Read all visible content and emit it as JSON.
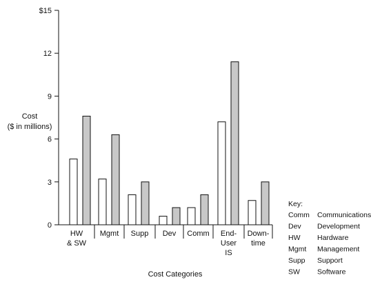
{
  "chart_data": {
    "type": "bar",
    "categories": [
      [
        "HW",
        "& SW"
      ],
      [
        "Mgmt"
      ],
      [
        "Supp"
      ],
      [
        "Dev"
      ],
      [
        "Comm"
      ],
      [
        "End-",
        "User",
        "IS"
      ],
      [
        "Down-",
        "time"
      ]
    ],
    "series": [
      {
        "values": [
          4.6,
          3.2,
          2.1,
          0.6,
          1.2,
          7.2,
          1.7
        ]
      },
      {
        "values": [
          7.6,
          6.3,
          3.0,
          1.2,
          2.1,
          11.4,
          3.0
        ]
      }
    ],
    "colors": {
      "series_0_fill": "#ffffff",
      "series_1_fill": "#c8c8c8",
      "stroke": "#111111"
    },
    "yticks": [
      "0",
      "3",
      "6",
      "9",
      "12",
      "$15"
    ],
    "ytick_values": [
      0,
      3,
      6,
      9,
      12,
      15
    ],
    "ylim": [
      0,
      15
    ],
    "ylabel": [
      "Cost",
      "($ in millions)"
    ],
    "xlabel": "Cost Categories",
    "legend_position": "bottom-right",
    "key": {
      "title": "Key:",
      "entries": [
        {
          "abbr": "Comm",
          "full": "Communications"
        },
        {
          "abbr": "Dev",
          "full": "Development"
        },
        {
          "abbr": "HW",
          "full": "Hardware"
        },
        {
          "abbr": "Mgmt",
          "full": "Management"
        },
        {
          "abbr": "Supp",
          "full": "Support"
        },
        {
          "abbr": "SW",
          "full": "Software"
        }
      ]
    }
  }
}
